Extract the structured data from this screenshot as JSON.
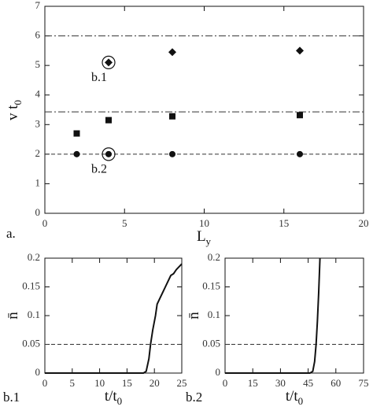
{
  "chart_data": [
    {
      "type": "scatter",
      "panel_label": "a.",
      "xlabel": [
        "L",
        "y"
      ],
      "ylabel": [
        "v t",
        "0"
      ],
      "xlim": [
        0,
        20
      ],
      "xticks": [
        0,
        5,
        10,
        15,
        20
      ],
      "ylim": [
        0,
        7
      ],
      "yticks": [
        0,
        1,
        2,
        3,
        4,
        5,
        6,
        7
      ],
      "color": "#111111",
      "series": [
        {
          "marker": "circle",
          "x": [
            2,
            4,
            8,
            16
          ],
          "values": [
            2,
            2,
            2,
            2
          ]
        },
        {
          "marker": "square",
          "x": [
            2,
            4,
            8,
            16
          ],
          "values": [
            2.7,
            3.15,
            3.28,
            3.32
          ]
        },
        {
          "marker": "diamond",
          "x": [
            4,
            8,
            16
          ],
          "values": [
            5.1,
            5.45,
            5.5
          ]
        }
      ],
      "hlines": [
        {
          "value": 6,
          "style": "dashdot"
        },
        {
          "value": 3.43,
          "style": "dashdot"
        },
        {
          "value": 2,
          "style": "dashed"
        }
      ],
      "annotations": [
        {
          "text": "b.1",
          "x": 4,
          "y": 5.1
        },
        {
          "text": "b.2",
          "x": 4,
          "y": 2
        }
      ]
    },
    {
      "type": "line",
      "panel_label": "b.1",
      "xlabel": [
        "t/t",
        "0"
      ],
      "ylabel": [
        "n̄",
        ""
      ],
      "xlim": [
        0,
        25
      ],
      "xticks": [
        0,
        5,
        10,
        15,
        20,
        25
      ],
      "ylim": [
        0,
        0.2
      ],
      "yticks": [
        0,
        0.05,
        0.1,
        0.15,
        0.2
      ],
      "color": "#111111",
      "series": [
        {
          "x": [
            0,
            18,
            18.5,
            19,
            19.3,
            19.7,
            20.2,
            20.5,
            21,
            21.5,
            22,
            22.5,
            23,
            23.5,
            24,
            24.5,
            25
          ],
          "values": [
            0,
            0,
            0.003,
            0.025,
            0.05,
            0.075,
            0.1,
            0.12,
            0.13,
            0.14,
            0.15,
            0.16,
            0.17,
            0.173,
            0.18,
            0.185,
            0.19
          ]
        }
      ],
      "hlines": [
        {
          "value": 0.05,
          "style": "dashed"
        }
      ]
    },
    {
      "type": "line",
      "panel_label": "b.2",
      "xlabel": [
        "t/t",
        "0"
      ],
      "ylabel": [
        "n̄",
        ""
      ],
      "xlim": [
        0,
        75
      ],
      "xticks": [
        0,
        15,
        30,
        45,
        60,
        75
      ],
      "ylim": [
        0,
        0.2
      ],
      "yticks": [
        0,
        0.05,
        0.1,
        0.15,
        0.2
      ],
      "color": "#111111",
      "series": [
        {
          "x": [
            0,
            46,
            47.5,
            48.5,
            49.3,
            50,
            50.7,
            51.4
          ],
          "values": [
            0,
            0,
            0.003,
            0.02,
            0.05,
            0.09,
            0.14,
            0.2
          ]
        }
      ],
      "hlines": [
        {
          "value": 0.05,
          "style": "dashed"
        }
      ]
    }
  ]
}
